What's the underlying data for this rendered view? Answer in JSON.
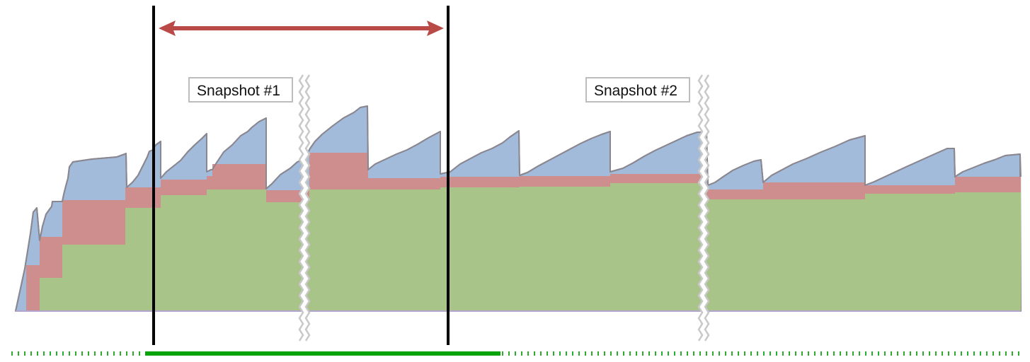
{
  "labels": {
    "snapshot_1": "Snapshot #1",
    "snapshot_2": "Snapshot #2"
  },
  "colors": {
    "top_layer": "#a3bbdb",
    "middle_layer": "#cf8e8e",
    "bottom_layer": "#a8c489",
    "outline": "#8a8790",
    "baseline": "#b3a4cf",
    "marker_lines": "#000000",
    "range_arrow": "#b94a48",
    "break_marks": "#c8c8c8",
    "timeline_dash": "#2eaa2e",
    "timeline_highlight": "#0aa30a"
  },
  "icons": {
    "range_arrow": "double-headed-arrow-icon",
    "break_marks": "zigzag-break-icon"
  }
}
